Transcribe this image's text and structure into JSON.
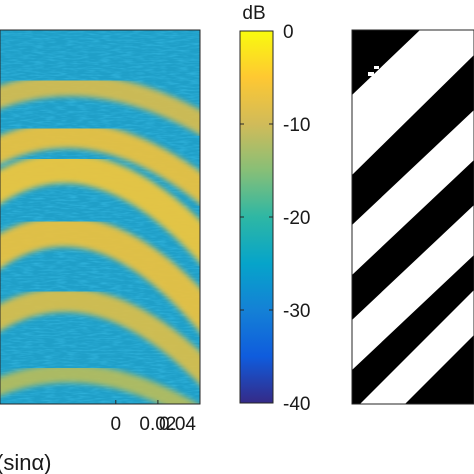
{
  "chart_data": [
    {
      "type": "heatmap",
      "panel": "spectrogram",
      "title": "",
      "xlabel": "(sinα)",
      "ylabel": "",
      "x_ticks": [
        0,
        0.02,
        0.04
      ],
      "x_tick_labels": [
        "0",
        "0.02",
        "0.04"
      ],
      "xlim": [
        -0.055,
        0.04
      ],
      "colorbar": {
        "label": "dB",
        "ticks": [
          0,
          -10,
          -20,
          -30,
          -40
        ],
        "tick_labels": [
          "0",
          "-10",
          "-20",
          "-30",
          "-40"
        ],
        "range": [
          -40,
          0
        ],
        "colormap": "parula",
        "colors": [
          "#352a87",
          "#0f5cdd",
          "#1481d6",
          "#06a4ca",
          "#2eb7a4",
          "#87bf77",
          "#d1bb59",
          "#fec832",
          "#f9fb0e"
        ]
      },
      "pattern": "noisy background (about -20 dB) with several bright bands (about -5 dB) curving from the lower-left toward the right edge"
    },
    {
      "type": "heatmap",
      "panel": "binary-mask",
      "colors": {
        "on": "#ffffff",
        "off": "#000000"
      },
      "pattern": "black background with diagonal white stripes rising from lower-left to upper-right"
    }
  ]
}
